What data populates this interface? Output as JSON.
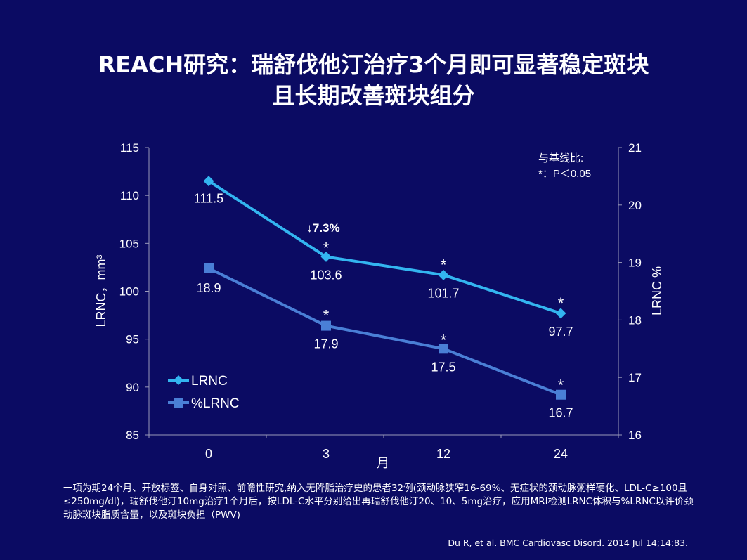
{
  "slide": {
    "title_line1": "REACH研究：瑞舒伐他汀治疗3个月即可显著稳定斑块",
    "title_line2": "且长期改善斑块组分",
    "footnote": "一项为期24个月、开放标签、自身对照、前瞻性研究,纳入无降脂治疗史的患者32例(颈动脉狭窄16-69%、无症状的颈动脉粥样硬化、LDL-C≥100且≤250mg/dl)，瑞舒伐他汀10mg治疗1个月后，按LDL-C水平分别给出再瑞舒伐他汀20、10、5mg治疗，应用MRI检测LRNC体积与%LRNC以评价颈动脉斑块脂质含量，以及斑块负担（PWV)",
    "citation": "Du R, et al. BMC Cardiovasc Disord. 2014 Jul 14;14:83."
  },
  "chart_data": {
    "type": "line",
    "categories": [
      "0",
      "3",
      "12",
      "24"
    ],
    "xlabel": "月",
    "ylabel_left": "LRNC，mm³",
    "ylabel_right": "LRNC %",
    "ylim_left": [
      85,
      115
    ],
    "yticks_left": [
      "85",
      "90",
      "95",
      "100",
      "105",
      "110",
      "115"
    ],
    "ylim_right": [
      16,
      21
    ],
    "yticks_right": [
      "16",
      "17",
      "18",
      "19",
      "20",
      "21"
    ],
    "grid": false,
    "legend_position": "bottom-left",
    "series": [
      {
        "name": "LRNC",
        "axis": "left",
        "marker": "diamond",
        "color": "#33b5f0",
        "values": [
          111.5,
          103.6,
          101.7,
          97.7
        ],
        "labels": [
          "111.5",
          "103.6",
          "101.7",
          "97.7"
        ],
        "significance": [
          "",
          "*",
          "*",
          "*"
        ]
      },
      {
        "name": "%LRNC",
        "axis": "right",
        "marker": "square",
        "color": "#4a7fd6",
        "values": [
          18.9,
          17.9,
          17.5,
          16.7
        ],
        "labels": [
          "18.9",
          "17.9",
          "17.5",
          "16.7"
        ],
        "significance": [
          "",
          "*",
          "*",
          "*"
        ]
      }
    ],
    "annotations": {
      "reduction": "↓7.3%",
      "note_line1": "与基线比:",
      "note_line2": "*：P＜0.05"
    }
  }
}
